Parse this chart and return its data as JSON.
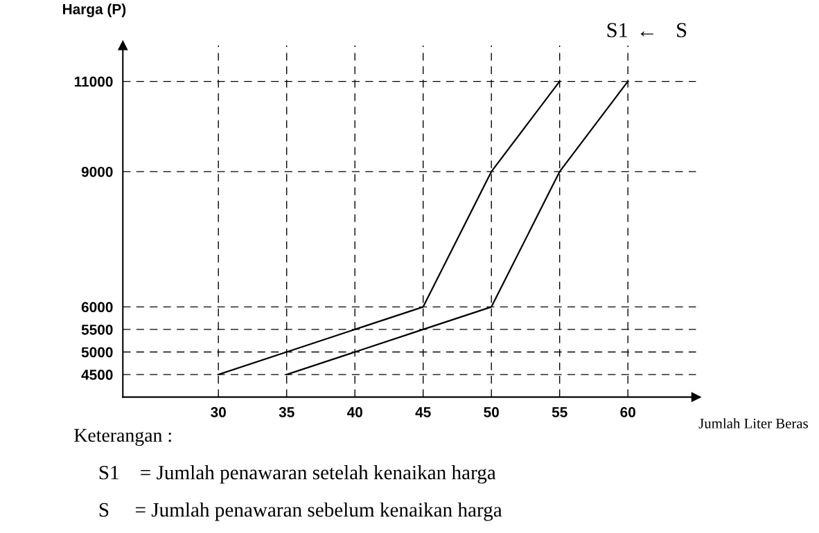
{
  "chart_data": {
    "type": "line",
    "ylabel": "Harga (P)",
    "xlabel": "Jumlah Liter Beras",
    "xlim": [
      23,
      65
    ],
    "xticks": [
      30,
      35,
      40,
      45,
      50,
      55,
      60
    ],
    "ylim": [
      4000,
      11800
    ],
    "yticks": [
      4500,
      5000,
      5500,
      6000,
      9000,
      11000
    ],
    "grid": true,
    "marker": "none",
    "line_style": "solid",
    "series": [
      {
        "name": "S1",
        "color": "#000000",
        "x": [
          30,
          35,
          40,
          45,
          50,
          55
        ],
        "values": [
          4500,
          5000,
          5500,
          6000,
          9000,
          11000
        ]
      },
      {
        "name": "S",
        "color": "#000000",
        "x": [
          35,
          40,
          45,
          50,
          55,
          60
        ],
        "values": [
          4500,
          5000,
          5500,
          6000,
          9000,
          11000
        ]
      }
    ],
    "annotations": [
      "←",
      "Keterangan :",
      "S1    = Jumlah penawaran setelah kenaikan harga",
      "S     = Jumlah penawaran sebelum kenaikan harga"
    ]
  }
}
